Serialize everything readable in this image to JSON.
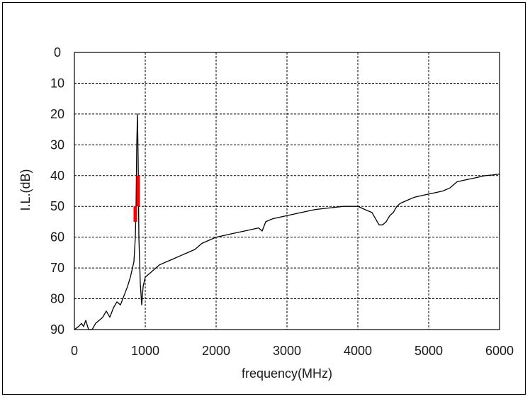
{
  "chart_data": {
    "type": "line",
    "xlabel": "frequency(MHz)",
    "ylabel": "I.L.(dB)",
    "xlim": [
      0,
      6000
    ],
    "ylim": [
      0,
      90
    ],
    "y_inverted": true,
    "grid": true,
    "grid_style": "dashed",
    "x_ticks": [
      "0",
      "1000",
      "2000",
      "3000",
      "4000",
      "5000",
      "6000"
    ],
    "y_ticks": [
      "0",
      "10",
      "20",
      "30",
      "40",
      "50",
      "60",
      "70",
      "80",
      "90"
    ],
    "series": [
      {
        "color": "#000000",
        "x": [
          0,
          60,
          100,
          130,
          160,
          200,
          250,
          300,
          350,
          400,
          450,
          500,
          550,
          600,
          650,
          700,
          750,
          790,
          820,
          840,
          860,
          870,
          880,
          890,
          900,
          910,
          930,
          950,
          970,
          1000,
          1100,
          1200,
          1300,
          1400,
          1500,
          1600,
          1700,
          1800,
          1900,
          2000,
          2200,
          2400,
          2600,
          2650,
          2700,
          2800,
          3000,
          3200,
          3400,
          3600,
          3800,
          4000,
          4100,
          4200,
          4300,
          4350,
          4400,
          4450,
          4500,
          4550,
          4600,
          4700,
          4800,
          4900,
          5000,
          5100,
          5200,
          5300,
          5400,
          5500,
          5600,
          5700,
          5800,
          5900,
          6000
        ],
        "y": [
          90,
          89,
          88,
          89,
          87,
          90,
          90,
          88,
          87,
          86,
          84,
          86,
          83,
          81,
          82,
          79,
          76,
          73,
          70,
          68,
          60,
          50,
          30,
          20,
          35,
          60,
          75,
          82,
          76,
          73,
          71,
          69,
          68,
          67,
          66,
          65,
          64,
          62,
          61,
          60,
          59,
          58,
          57,
          58,
          55,
          54,
          53,
          52,
          51,
          50.5,
          50,
          50,
          51,
          52,
          56,
          56,
          55,
          53,
          52,
          50,
          49,
          48,
          47,
          46.5,
          46,
          45.5,
          45,
          44,
          42,
          41.5,
          41,
          40.5,
          40,
          39.8,
          39.5
        ]
      },
      {
        "color": "#ff0000",
        "x": [
          860,
          860,
          900,
          900
        ],
        "y": [
          50,
          55,
          40,
          50
        ]
      }
    ]
  }
}
